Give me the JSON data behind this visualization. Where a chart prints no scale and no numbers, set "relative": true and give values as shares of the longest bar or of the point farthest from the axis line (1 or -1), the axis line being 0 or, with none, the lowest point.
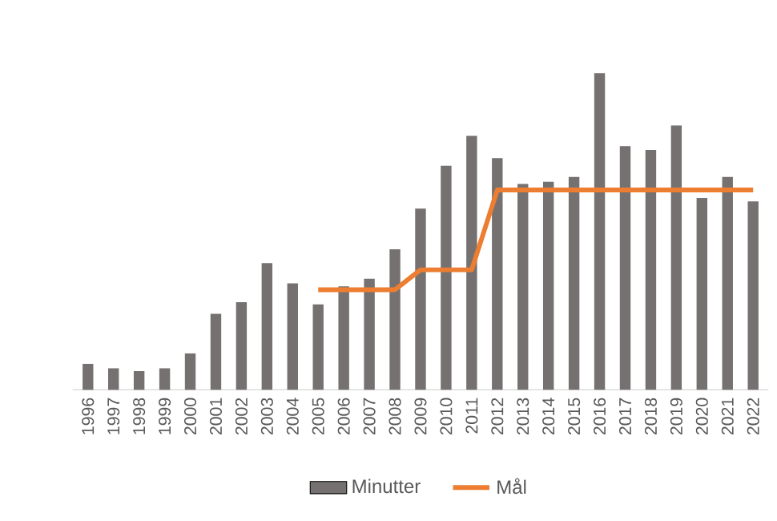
{
  "chart_data": {
    "type": "bar",
    "relative": true,
    "legend": "bottom",
    "categories": [
      "1996",
      "1997",
      "1998",
      "1999",
      "2000",
      "2001",
      "2002",
      "2003",
      "2004",
      "2005",
      "2006",
      "2007",
      "2008",
      "2009",
      "2010",
      "2011",
      "2012",
      "2013",
      "2014",
      "2015",
      "2016",
      "2017",
      "2018",
      "2019",
      "2020",
      "2021",
      "2022"
    ],
    "series": [
      {
        "name": "Minutter",
        "color": "#767171",
        "values": [
          0.082,
          0.068,
          0.059,
          0.068,
          0.115,
          0.24,
          0.277,
          0.4,
          0.336,
          0.27,
          0.327,
          0.351,
          0.444,
          0.572,
          0.708,
          0.802,
          0.732,
          0.65,
          0.657,
          0.672,
          1,
          0.77,
          0.758,
          0.835,
          0.606,
          0.672,
          0.595
        ]
      },
      {
        "name": "Mål",
        "type": "line",
        "color": "#ed7d31",
        "values": [
          null,
          null,
          null,
          null,
          null,
          null,
          null,
          null,
          null,
          0.316,
          0.316,
          0.316,
          0.316,
          0.379,
          0.379,
          0.379,
          0.631,
          0.631,
          0.631,
          0.631,
          0.631,
          0.631,
          0.631,
          0.631,
          0.631,
          0.631,
          0.631
        ]
      }
    ]
  }
}
